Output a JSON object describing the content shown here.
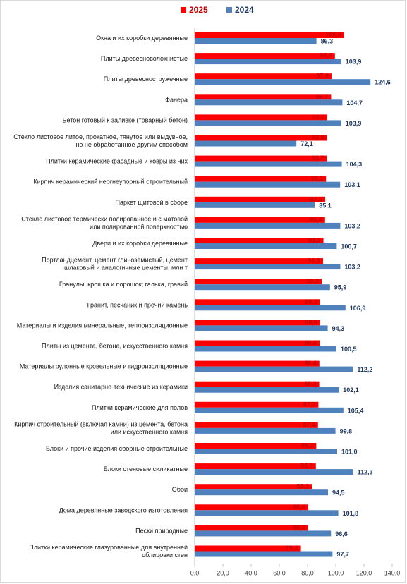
{
  "chart_data": {
    "type": "bar",
    "orientation": "horizontal",
    "categories": [
      "Окна и их коробки деревянные",
      "Плиты древесноволокнистые",
      "Плиты древесностружечные",
      "Фанера",
      "Бетон готовый к заливке (товарный бетон)",
      "Стекло листовое литое, прокатное, тянутое или выдувное, но не обработанное другим способом",
      "Плитки керамические фасадные и ковры из них",
      "Кирпич керамический неогнеупорный строительный",
      "Паркет щитовой в сборе",
      "Стекло листовое термически полированное и с матовой или полированной поверхностью",
      "Двери и их коробки деревянные",
      "Портландцемент, цемент глиноземистый, цемент шлаковый и аналогичные цементы, млн т",
      "Гранулы, крошка и порошок; галька, гравий",
      "Гранит, песчаник и прочий камень",
      "Материалы и изделия минеральные, теплоизоляционные",
      "Плиты из цемента, бетона, искусственного камня",
      "Материалы рулонные кровельные и гидроизоляционные",
      "Изделия санитарно-технические из керамики",
      "Плитки керамические для полов",
      "Кирпич строительный (включая камни) из цемента, бетона или искусственного камня",
      "Блоки и прочие изделия сборные строительные",
      "Блоки стеновые силикатные",
      "Обои",
      "Дома деревянные заводского изготовления",
      "Пески природные",
      "Плитки керамические глазурованные для внутренней облицовки стен"
    ],
    "category_lines": [
      [
        "Окна и их коробки деревянные"
      ],
      [
        "Плиты древесноволокнистые"
      ],
      [
        "Плиты древесностружечные"
      ],
      [
        "Фанера"
      ],
      [
        "Бетон готовый к заливке (товарный бетон)"
      ],
      [
        "Стекло листовое литое, прокатное, тянутое или выдувное,",
        "но не обработанное другим способом"
      ],
      [
        "Плитки керамические фасадные и ковры из них"
      ],
      [
        "Кирпич керамический неогнеупорный строительный"
      ],
      [
        "Паркет щитовой в сборе"
      ],
      [
        "Стекло листовое термически полированное и с матовой",
        "или полированной поверхностью"
      ],
      [
        "Двери и их коробки деревянные"
      ],
      [
        "Портландцемент, цемент глиноземистый, цемент",
        "шлаковый и аналогичные цементы, млн т"
      ],
      [
        "Гранулы, крошка и порошок; галька, гравий"
      ],
      [
        "Гранит, песчаник и прочий камень"
      ],
      [
        "Материалы и изделия минеральные, теплоизоляционные"
      ],
      [
        "Плиты из цемента, бетона, искусственного камня"
      ],
      [
        "Материалы рулонные кровельные и гидроизоляционные"
      ],
      [
        "Изделия санитарно-технические из керамики"
      ],
      [
        "Плитки керамические для полов"
      ],
      [
        "Кирпич строительный (включая камни) из цемента, бетона",
        "или искусственного камня"
      ],
      [
        "Блоки и прочие изделия сборные строительные"
      ],
      [
        "Блоки стеновые силикатные"
      ],
      [
        "Обои"
      ],
      [
        "Дома деревянные заводского изготовления"
      ],
      [
        "Пески природные"
      ],
      [
        "Плитки керамические глазурованные для внутренней",
        "облицовки стен"
      ]
    ],
    "series": [
      {
        "name": "2025",
        "color": "#ff0000",
        "values": [
          105.8,
          99.4,
          97.0,
          96.7,
          93.9,
          93.8,
          93.7,
          93.1,
          92.5,
          92.4,
          91.3,
          91.0,
          90.0,
          88.8,
          88.8,
          88.6,
          88.4,
          88.3,
          87.7,
          87.4,
          86.2,
          85.9,
          83.1,
          80.4,
          80.3,
          75.3
        ],
        "labels": [
          "105,8",
          "99,4",
          "97,0",
          "96,7",
          "93,9",
          "93,8",
          "93,7",
          "93,1",
          "92,5",
          "92,4",
          "91,3",
          "91,0",
          "90,0",
          "88,8",
          "88,8",
          "88,6",
          "88,4",
          "88,3",
          "87,7",
          "87,4",
          "86,2",
          "85,9",
          "83,1",
          "80,4",
          "80,3",
          "75,3"
        ]
      },
      {
        "name": "2024",
        "color": "#4f81bd",
        "values": [
          86.3,
          103.9,
          124.6,
          104.7,
          103.9,
          72.1,
          104.3,
          103.1,
          85.1,
          103.2,
          100.7,
          103.2,
          95.9,
          106.9,
          94.3,
          100.5,
          112.2,
          102.1,
          105.4,
          99.8,
          101.0,
          112.3,
          94.5,
          101.8,
          96.6,
          97.7
        ],
        "labels": [
          "86,3",
          "103,9",
          "124,6",
          "104,7",
          "103,9",
          "72,1",
          "104,3",
          "103,1",
          "85,1",
          "103,2",
          "100,7",
          "103,2",
          "95,9",
          "106,9",
          "94,3",
          "100,5",
          "112,2",
          "102,1",
          "105,4",
          "99,8",
          "101,0",
          "112,3",
          "94,5",
          "101,8",
          "96,6",
          "97,7"
        ]
      }
    ],
    "xlim": [
      0,
      140
    ],
    "xticks": [
      0,
      20,
      40,
      60,
      80,
      100,
      120,
      140
    ],
    "xtick_labels": [
      "0,0",
      "20,0",
      "40,0",
      "60,0",
      "80,0",
      "100,0",
      "120,0",
      "140,0"
    ],
    "legend_position": "top-center",
    "grid": false
  }
}
